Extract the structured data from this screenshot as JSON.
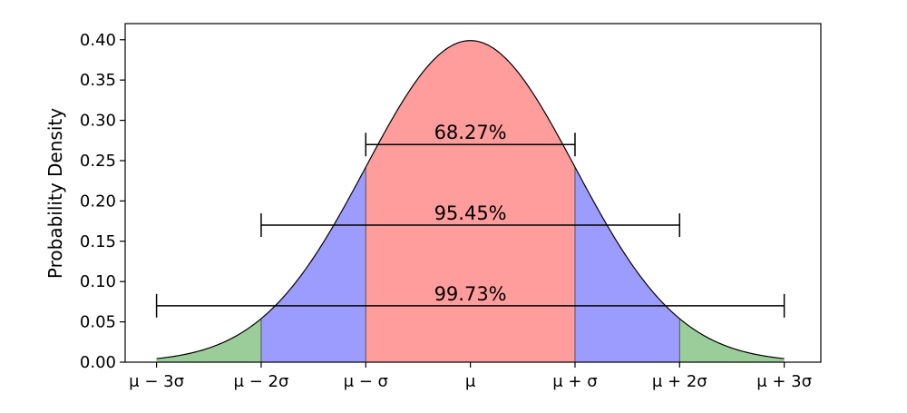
{
  "chart_data": {
    "type": "area",
    "distribution": "normal",
    "mean": 0,
    "std": 1,
    "ylabel": "Probability Density",
    "xlabel": "",
    "xlim": [
      -3.3,
      3.35
    ],
    "ylim": [
      0,
      0.42
    ],
    "x_ticks": [
      -3,
      -2,
      -1,
      0,
      1,
      2,
      3
    ],
    "x_tick_labels": [
      "μ − 3σ",
      "μ − 2σ",
      "μ − σ",
      "μ",
      "μ + σ",
      "μ + 2σ",
      "μ + 3σ"
    ],
    "y_ticks": [
      0,
      0.05,
      0.1,
      0.15,
      0.2,
      0.25,
      0.3,
      0.35,
      0.4
    ],
    "y_tick_labels": [
      "0.00",
      "0.05",
      "0.10",
      "0.15",
      "0.20",
      "0.25",
      "0.30",
      "0.35",
      "0.40"
    ],
    "curve_range": [
      -3,
      3
    ],
    "regions": [
      {
        "from": -3,
        "to": -2,
        "color": "#9acd9a"
      },
      {
        "from": -2,
        "to": -1,
        "color": "#9c9cff"
      },
      {
        "from": -1,
        "to": 1,
        "color": "#ff9c9c"
      },
      {
        "from": 1,
        "to": 2,
        "color": "#9c9cff"
      },
      {
        "from": 2,
        "to": 3,
        "color": "#9acd9a"
      }
    ],
    "intervals": [
      {
        "from": -1,
        "to": 1,
        "y": 0.27,
        "label": "68.27%"
      },
      {
        "from": -2,
        "to": 2,
        "y": 0.17,
        "label": "95.45%"
      },
      {
        "from": -3,
        "to": 3,
        "y": 0.07,
        "label": "99.73%"
      }
    ],
    "grid": false,
    "legend": "none"
  }
}
